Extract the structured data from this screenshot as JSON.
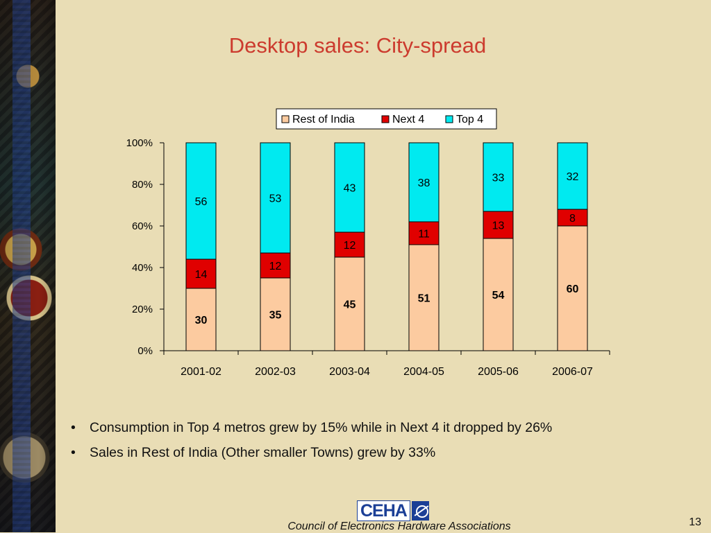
{
  "title": "Desktop sales: City-spread",
  "colors": {
    "background": "#e9ddb5",
    "title": "#cc3b2e",
    "rest_of_india": "#fccba0",
    "next4": "#e00000",
    "top4": "#00eaf0"
  },
  "chart_data": {
    "type": "bar",
    "stacked": true,
    "normalized": true,
    "categories": [
      "2001-02",
      "2002-03",
      "2003-04",
      "2004-05",
      "2005-06",
      "2006-07"
    ],
    "series": [
      {
        "name": "Rest of India",
        "values": [
          30,
          35,
          45,
          51,
          54,
          60
        ],
        "color": "#fccba0"
      },
      {
        "name": "Next 4",
        "values": [
          14,
          12,
          12,
          11,
          13,
          8
        ],
        "color": "#e00000"
      },
      {
        "name": "Top 4",
        "values": [
          56,
          53,
          43,
          38,
          33,
          32
        ],
        "color": "#00eaf0"
      }
    ],
    "y_ticks": [
      "0%",
      "20%",
      "40%",
      "60%",
      "80%",
      "100%"
    ],
    "ylim": [
      0,
      100
    ],
    "legend_position": "top-right",
    "grid": false
  },
  "bullets": [
    "Consumption in Top 4 metros grew by 15% while in Next 4 it dropped by 26%",
    "Sales in Rest of India (Other smaller Towns) grew by 33%"
  ],
  "bullet_glyph": "•",
  "footer": {
    "logo_text": "CEHA",
    "organization": "Council of Electronics Hardware Associations"
  },
  "page_number": "13",
  "icons": [
    "ceha-logo-icon",
    "bullet-icon"
  ]
}
